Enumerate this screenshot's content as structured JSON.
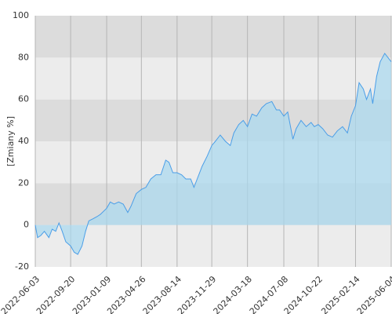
{
  "chart_data": {
    "type": "area",
    "y_label": "[Zmiany %]",
    "x": [
      "2022-06-03",
      "2022-06-10",
      "2022-06-20",
      "2022-07-01",
      "2022-07-15",
      "2022-07-25",
      "2022-08-05",
      "2022-08-15",
      "2022-08-25",
      "2022-09-05",
      "2022-09-20",
      "2022-10-01",
      "2022-10-12",
      "2022-10-25",
      "2022-11-05",
      "2022-11-15",
      "2022-11-28",
      "2022-12-10",
      "2022-12-20",
      "2023-01-09",
      "2023-01-20",
      "2023-02-01",
      "2023-02-15",
      "2023-03-01",
      "2023-03-15",
      "2023-03-25",
      "2023-04-10",
      "2023-04-26",
      "2023-05-10",
      "2023-05-25",
      "2023-06-10",
      "2023-06-25",
      "2023-07-10",
      "2023-07-20",
      "2023-08-01",
      "2023-08-14",
      "2023-08-28",
      "2023-09-10",
      "2023-09-25",
      "2023-10-05",
      "2023-10-15",
      "2023-10-30",
      "2023-11-15",
      "2023-11-29",
      "2023-12-10",
      "2023-12-25",
      "2024-01-10",
      "2024-01-25",
      "2024-02-05",
      "2024-02-20",
      "2024-03-05",
      "2024-03-18",
      "2024-04-01",
      "2024-04-15",
      "2024-05-01",
      "2024-05-15",
      "2024-06-01",
      "2024-06-15",
      "2024-06-25",
      "2024-07-08",
      "2024-07-20",
      "2024-08-05",
      "2024-08-15",
      "2024-08-30",
      "2024-09-15",
      "2024-09-30",
      "2024-10-10",
      "2024-10-22",
      "2024-11-05",
      "2024-11-20",
      "2024-12-05",
      "2024-12-20",
      "2025-01-05",
      "2025-01-20",
      "2025-02-01",
      "2025-02-14",
      "2025-02-25",
      "2025-03-10",
      "2025-03-20",
      "2025-04-01",
      "2025-04-08",
      "2025-04-20",
      "2025-05-01",
      "2025-05-15",
      "2025-05-25",
      "2025-06-04"
    ],
    "series": [
      {
        "color": "#4a9ee8",
        "fill": "#a8d8ef",
        "values": [
          0,
          -6,
          -5,
          -3,
          -6,
          -2,
          -3,
          1,
          -3,
          -8,
          -10,
          -13,
          -14,
          -10,
          -3,
          2,
          3,
          4,
          5,
          8,
          11,
          10,
          11,
          10,
          6,
          9,
          15,
          17,
          18,
          22,
          24,
          24,
          31,
          30,
          25,
          25,
          24,
          22,
          22,
          18,
          22,
          28,
          33,
          38,
          40,
          43,
          40,
          38,
          44,
          48,
          50,
          47,
          53,
          52,
          56,
          58,
          59,
          55,
          55,
          52,
          54,
          41,
          46,
          50,
          47,
          49,
          47,
          48,
          46,
          43,
          42,
          45,
          47,
          44,
          52,
          57,
          68,
          65,
          60,
          65,
          58,
          71,
          78,
          82,
          80,
          78
        ]
      }
    ],
    "xlim": [
      "2022-06-03",
      "2025-06-04"
    ],
    "xticks": [
      "2022-06-03",
      "2022-09-20",
      "2023-01-09",
      "2023-04-26",
      "2023-08-14",
      "2023-11-29",
      "2024-03-18",
      "2024-07-08",
      "2024-10-22",
      "2025-02-14",
      "2025-06-04"
    ],
    "ylim": [
      -20,
      100
    ],
    "yticks": [
      -20,
      0,
      20,
      40,
      60,
      80,
      100
    ],
    "grid": true
  }
}
